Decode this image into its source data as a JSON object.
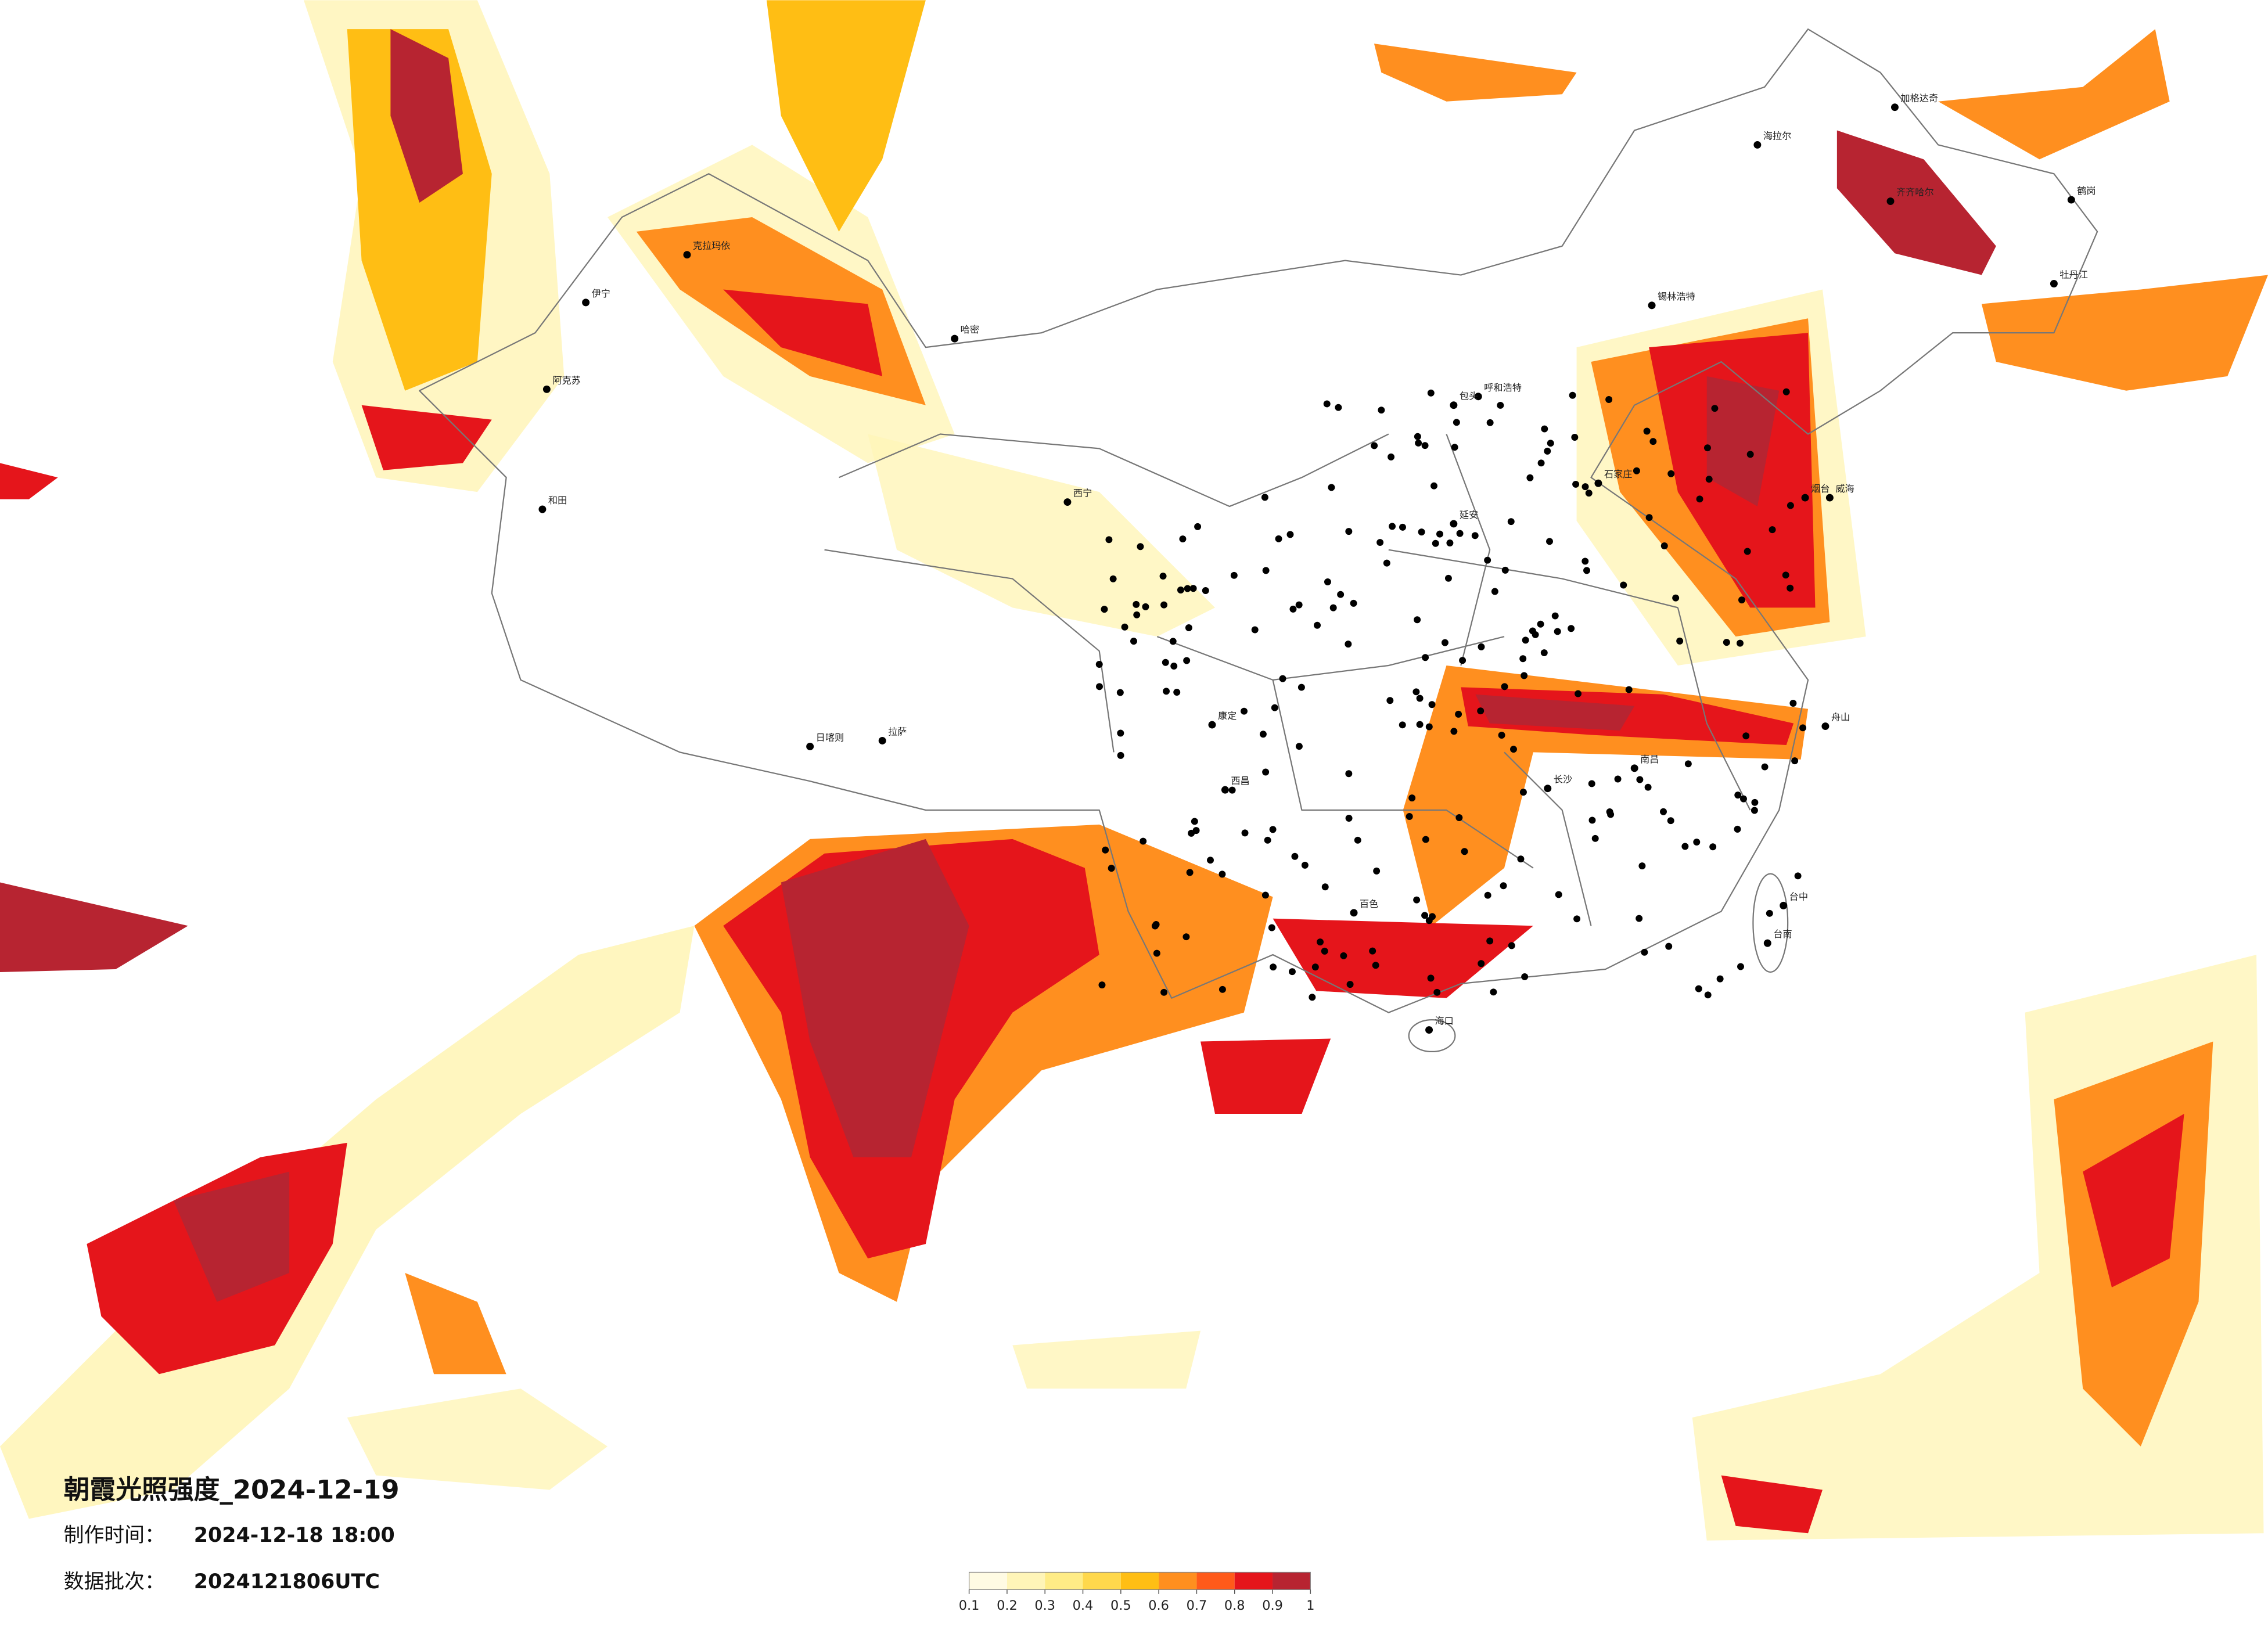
{
  "title": "朝霞光照强度_2024-12-19",
  "issue_time": {
    "label": "制作时间：",
    "value": "2024-12-18 18:00"
  },
  "batch": {
    "label": "数据批次：",
    "value": "2024121806UTC"
  },
  "legend": {
    "ticks": [
      0.1,
      0.2,
      0.3,
      0.4,
      0.5,
      0.6,
      0.7,
      0.8,
      0.9,
      1
    ],
    "colors": [
      "#fffbe3",
      "#fff5b8",
      "#ffec86",
      "#ffd84c",
      "#ffbe14",
      "#ff8f1f",
      "#ff5a1a",
      "#e5151b",
      "#b72431"
    ]
  },
  "cities": [
    "克拉玛依",
    "伊宁",
    "阿克苏",
    "和田",
    "哈密",
    "日喀则",
    "拉萨",
    "西宁",
    "康定",
    "西昌",
    "百色",
    "海口",
    "台中",
    "台南",
    "呼和浩特",
    "包头",
    "齐齐哈尔",
    "石家庄",
    "南昌",
    "长沙",
    "舟山",
    "威海",
    "烟台",
    "延安",
    "海拉尔",
    "锡林浩特",
    "加格达奇",
    "鹤岗",
    "牡丹江"
  ]
}
